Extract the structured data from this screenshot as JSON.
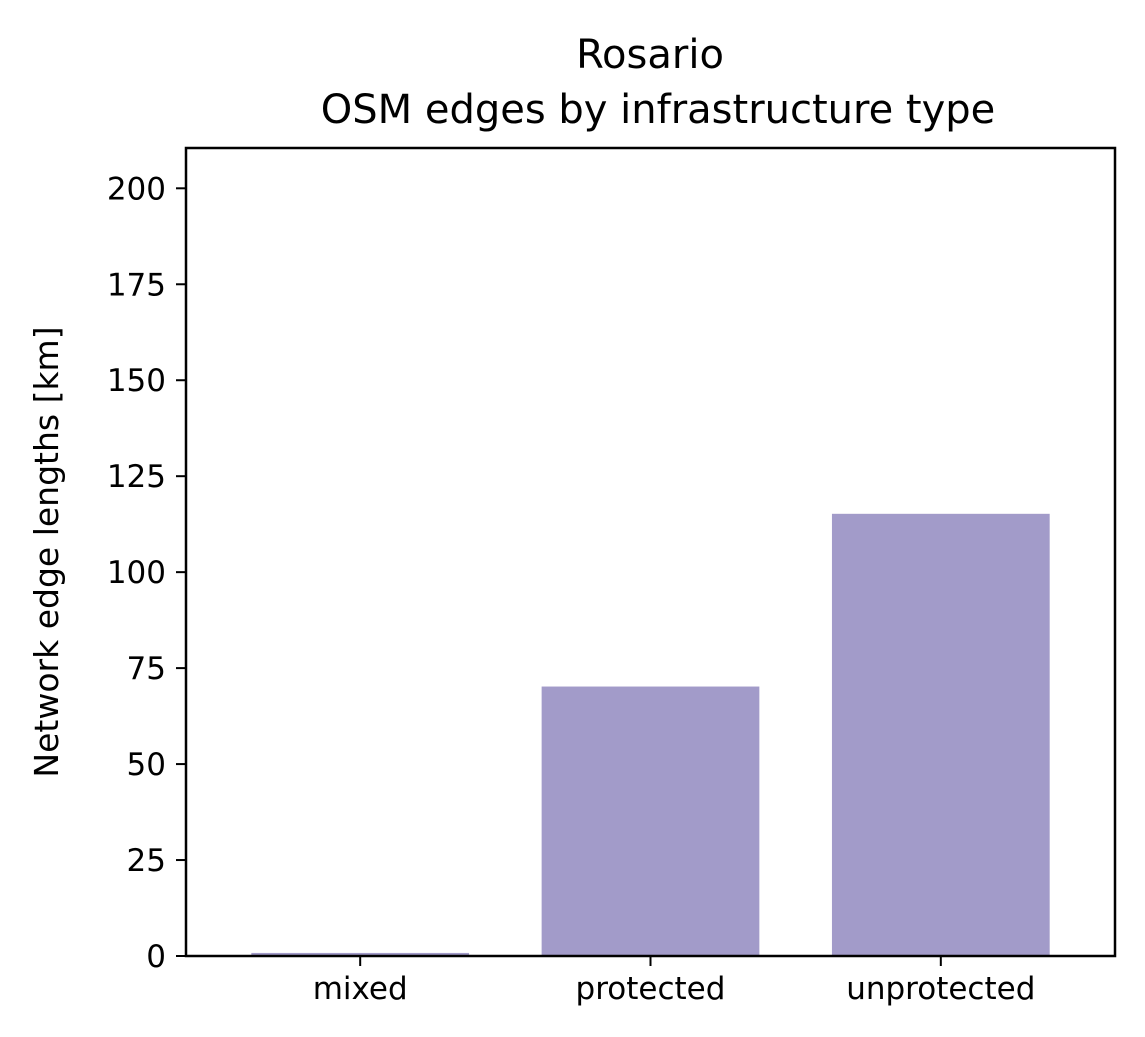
{
  "chart_data": {
    "type": "bar",
    "title_lines": [
      "Rosario",
      "OSM edges by infrastructure type"
    ],
    "xlabel": "",
    "ylabel": "Network edge lengths [km]",
    "categories": [
      "mixed",
      "protected",
      "unprotected"
    ],
    "values": [
      0.8,
      70.2,
      115.2
    ],
    "ylim": [
      0,
      210.5
    ],
    "yticks": [
      "0",
      "25",
      "50",
      "75",
      "100",
      "125",
      "150",
      "175",
      "200"
    ],
    "bar_color": "#a29bc9",
    "grid": false,
    "legend": "none"
  }
}
